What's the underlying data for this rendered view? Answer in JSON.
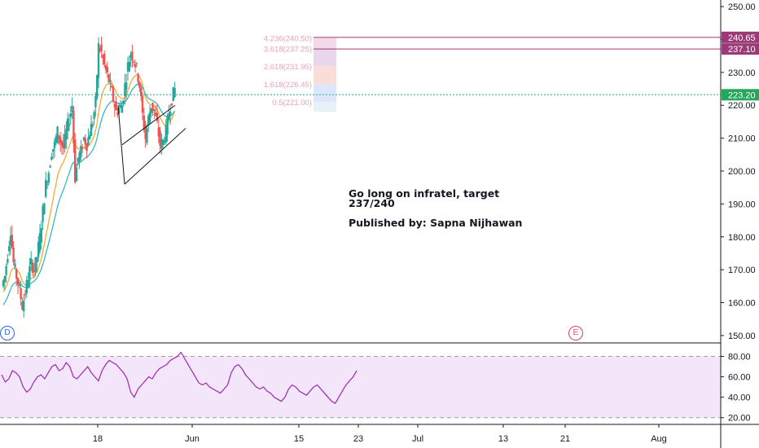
{
  "price_chart": {
    "chart_data": {
      "type": "candlestick",
      "title": "",
      "x_ticks": [
        "18",
        "Jun",
        "15",
        "23",
        "Jul",
        "13",
        "21",
        "Aug"
      ],
      "y_ticks": [
        "150.00",
        "160.00",
        "170.00",
        "180.00",
        "190.00",
        "200.00",
        "210.00",
        "220.00",
        "230.00",
        "240.00",
        "250.00"
      ],
      "ylim": [
        148,
        252
      ],
      "grid": false,
      "current_price": "223.20",
      "target_levels": [
        "240.65",
        "237.10"
      ],
      "fib_labels": [
        "4.236(240.50)",
        "3.618(237.25)",
        "2.618(231.95)",
        "1.618(226.45)",
        "0.5(221.00)"
      ],
      "price_path": [
        [
          0,
          165
        ],
        [
          2,
          168
        ],
        [
          4,
          175
        ],
        [
          6,
          182
        ],
        [
          8,
          172
        ],
        [
          10,
          168
        ],
        [
          12,
          164
        ],
        [
          14,
          159
        ],
        [
          16,
          163
        ],
        [
          18,
          168
        ],
        [
          20,
          172
        ],
        [
          22,
          170
        ],
        [
          24,
          174
        ],
        [
          26,
          180
        ],
        [
          28,
          188
        ],
        [
          30,
          196
        ],
        [
          32,
          200
        ],
        [
          34,
          206
        ],
        [
          36,
          208
        ],
        [
          38,
          212
        ],
        [
          40,
          209
        ],
        [
          42,
          207
        ],
        [
          44,
          212
        ],
        [
          46,
          216
        ],
        [
          48,
          220
        ],
        [
          50,
          198
        ],
        [
          52,
          204
        ],
        [
          54,
          206
        ],
        [
          56,
          210
        ],
        [
          58,
          208
        ],
        [
          60,
          212
        ],
        [
          62,
          215
        ],
        [
          64,
          221
        ],
        [
          66,
          238
        ],
        [
          68,
          236
        ],
        [
          70,
          232
        ],
        [
          72,
          229
        ],
        [
          74,
          226
        ],
        [
          76,
          222
        ],
        [
          78,
          218
        ],
        [
          80,
          219
        ],
        [
          82,
          220
        ],
        [
          84,
          226
        ],
        [
          86,
          232
        ],
        [
          88,
          236
        ],
        [
          90,
          234
        ],
        [
          92,
          231
        ],
        [
          94,
          226
        ],
        [
          96,
          217
        ],
        [
          98,
          210
        ],
        [
          100,
          216
        ],
        [
          102,
          220
        ],
        [
          104,
          218
        ],
        [
          106,
          214
        ],
        [
          108,
          208
        ],
        [
          110,
          209
        ],
        [
          112,
          212
        ],
        [
          114,
          218
        ],
        [
          116,
          222
        ],
        [
          118,
          225
        ]
      ],
      "series": [
        {
          "name": "",
          "color": "#f5a623"
        },
        {
          "name": "",
          "color": "#2bb3c0"
        }
      ]
    },
    "event_markers": {
      "left": "D",
      "right": "E"
    },
    "colors": {
      "up": "#26a69a",
      "down": "#ef5350",
      "ema_fast": "#f5a623",
      "ema_slow": "#2bb3c0",
      "levels": "#9c3a78"
    }
  },
  "rsi_panel": {
    "chart_data": {
      "type": "line",
      "y_ticks": [
        "20.00",
        "40.00",
        "60.00",
        "80.00"
      ],
      "ylim": [
        15,
        90
      ],
      "bands": [
        20,
        80
      ],
      "values": [
        62,
        55,
        58,
        66,
        64,
        60,
        50,
        45,
        48,
        55,
        60,
        62,
        58,
        64,
        70,
        72,
        66,
        68,
        74,
        70,
        60,
        58,
        62,
        66,
        70,
        64,
        60,
        56,
        66,
        72,
        76,
        74,
        72,
        68,
        64,
        58,
        45,
        40,
        48,
        52,
        56,
        60,
        58,
        64,
        68,
        70,
        72,
        76,
        78,
        80,
        84,
        78,
        72,
        66,
        60,
        54,
        52,
        54,
        50,
        48,
        46,
        44,
        48,
        52,
        64,
        70,
        72,
        68,
        62,
        58,
        54,
        50,
        48,
        50,
        46,
        44,
        40,
        38,
        36,
        40,
        48,
        52,
        50,
        46,
        44,
        42,
        46,
        50,
        52,
        48,
        44,
        40,
        36,
        34,
        40,
        46,
        52,
        56,
        60,
        66
      ],
      "color": "#9c27b0"
    }
  },
  "annotation": {
    "text": "Go long on infratel, target 237/240",
    "author": "Published by: Sapna Nijhawan"
  }
}
